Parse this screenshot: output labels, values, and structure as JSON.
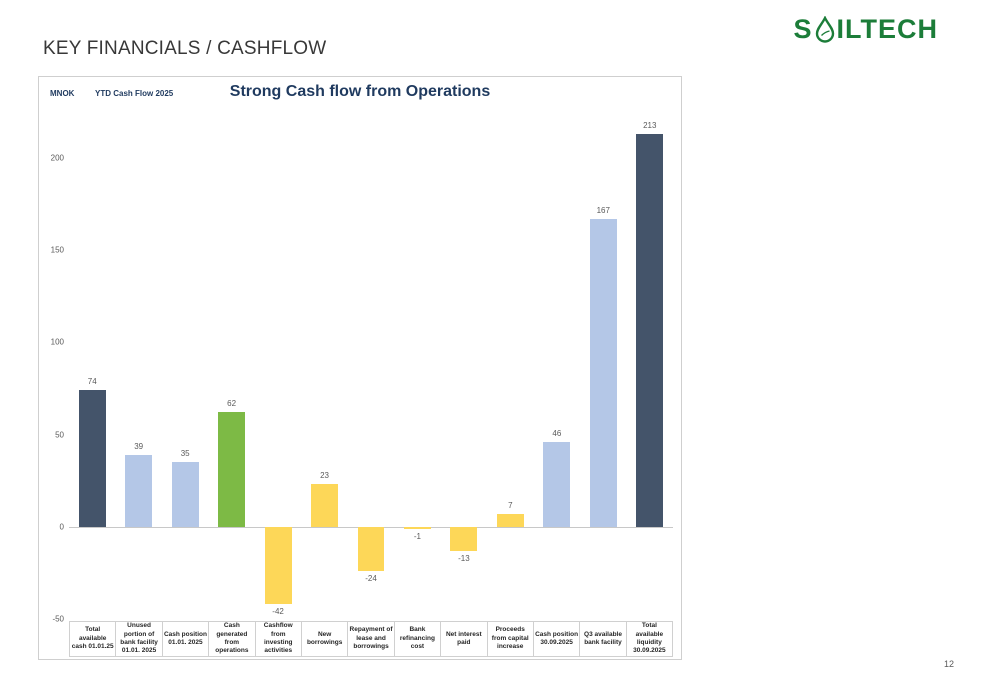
{
  "slide": {
    "title": "KEY FINANCIALS / CASHFLOW",
    "page_number": "12"
  },
  "logo": {
    "text_before": "S",
    "text_after": "ILTECH",
    "color": "#1c7d39"
  },
  "chart": {
    "unit_label": "MNOK",
    "period_label": "YTD Cash Flow 2025",
    "title": "Strong Cash flow from Operations"
  },
  "chart_data": {
    "type": "bar",
    "title": "Strong Cash flow from Operations",
    "xlabel": "",
    "ylabel": "MNOK",
    "ylim": [
      -50,
      220
    ],
    "yticks": [
      -50,
      0,
      50,
      100,
      150,
      200
    ],
    "grid": false,
    "legend": "none",
    "categories": [
      "Total available cash 01.01.25",
      "Unused portion of bank facility 01.01. 2025",
      "Cash position 01.01. 2025",
      "Cash generated from operations",
      "Cashflow from investing activities",
      "New borrowings",
      "Repayment of lease and borrowings",
      "Bank refinancing cost",
      "Net interest paid",
      "Proceeds from capital increase",
      "Cash position 30.09.2025",
      "Q3 available bank facility",
      "Total available liquidity 30.09.2025"
    ],
    "values": [
      74,
      39,
      35,
      62,
      -42,
      23,
      -24,
      -1,
      -13,
      7,
      46,
      167,
      213
    ],
    "colors": [
      "#44546a",
      "#b4c7e7",
      "#b4c7e7",
      "#7dba45",
      "#fdd758",
      "#fdd758",
      "#fdd758",
      "#fdd758",
      "#fdd758",
      "#fdd758",
      "#b4c7e7",
      "#b4c7e7",
      "#44546a"
    ]
  }
}
